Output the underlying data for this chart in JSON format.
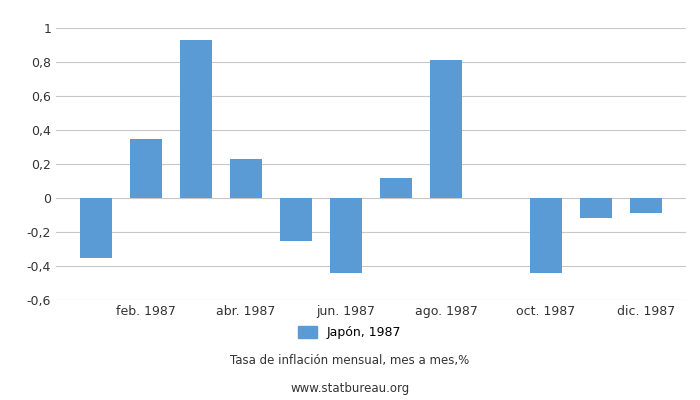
{
  "month_nums": [
    1,
    2,
    3,
    4,
    5,
    6,
    7,
    8,
    9,
    10,
    11,
    12
  ],
  "values": [
    -0.35,
    0.35,
    0.93,
    0.23,
    -0.25,
    -0.44,
    0.12,
    0.81,
    0.0,
    -0.44,
    -0.12,
    -0.09
  ],
  "bar_color": "#5b9bd5",
  "ylim": [
    -0.6,
    1.0
  ],
  "yticks": [
    -0.6,
    -0.4,
    -0.2,
    0.0,
    0.2,
    0.4,
    0.6,
    0.8,
    1.0
  ],
  "xtick_labels": [
    "feb. 1987",
    "abr. 1987",
    "jun. 1987",
    "ago. 1987",
    "oct. 1987",
    "dic. 1987"
  ],
  "xtick_positions": [
    2,
    4,
    6,
    8,
    10,
    12
  ],
  "legend_label": "Japón, 1987",
  "caption_line1": "Tasa de inflación mensual, mes a mes,%",
  "caption_line2": "www.statbureau.org",
  "background_color": "#ffffff",
  "grid_color": "#c8c8c8"
}
